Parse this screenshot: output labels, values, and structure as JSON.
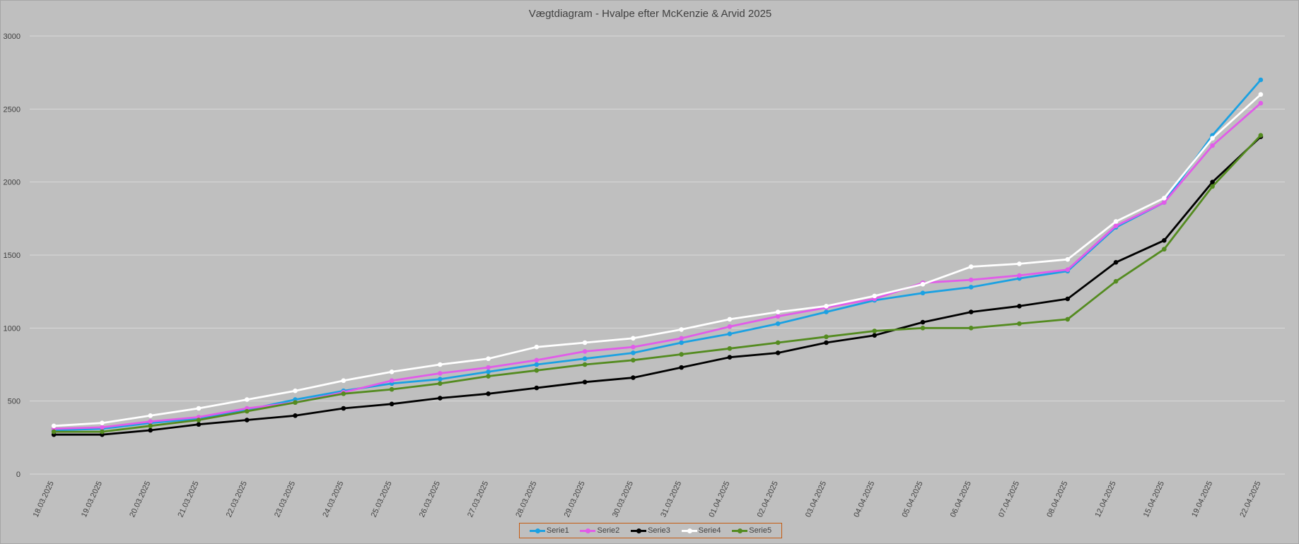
{
  "chart_data": {
    "type": "line",
    "title": "Vægtdiagram - Hvalpe efter McKenzie & Arvid 2025",
    "xlabel": "",
    "ylabel": "",
    "ylim": [
      0,
      3000
    ],
    "yticks": [
      0,
      500,
      1000,
      1500,
      2000,
      2500,
      3000
    ],
    "grid": true,
    "legend_position": "bottom",
    "categories": [
      "18.03.2025",
      "19.03.2025",
      "20.03.2025",
      "21.03.2025",
      "22.03.2025",
      "23.03.2025",
      "24.03.2025",
      "25.03.2025",
      "26.03.2025",
      "27.03.2025",
      "28.03.2025",
      "29.03.2025",
      "30.03.2025",
      "31.03.2025",
      "01.04.2025",
      "02.04.2025",
      "03.04.2025",
      "04.04.2025",
      "05.04.2025",
      "06.04.2025",
      "07.04.2025",
      "08.04.2025",
      "12.04.2025",
      "15.04.2025",
      "19.04.2025",
      "22.04.2025"
    ],
    "series": [
      {
        "name": "Serie1",
        "color": "#1ba1e2",
        "values": [
          300,
          310,
          350,
          380,
          440,
          510,
          570,
          620,
          650,
          700,
          750,
          790,
          830,
          900,
          960,
          1030,
          1110,
          1190,
          1240,
          1280,
          1340,
          1390,
          1690,
          1860,
          2320,
          2700
        ]
      },
      {
        "name": "Serie2",
        "color": "#e15ce9",
        "values": [
          310,
          320,
          360,
          390,
          450,
          490,
          560,
          640,
          690,
          730,
          780,
          840,
          870,
          930,
          1010,
          1080,
          1140,
          1200,
          1310,
          1330,
          1360,
          1400,
          1700,
          1860,
          2250,
          2540
        ]
      },
      {
        "name": "Serie3",
        "color": "#000000",
        "values": [
          270,
          270,
          300,
          340,
          370,
          400,
          450,
          480,
          520,
          550,
          590,
          630,
          660,
          730,
          800,
          830,
          900,
          950,
          1040,
          1110,
          1150,
          1200,
          1450,
          1600,
          2000,
          2310
        ]
      },
      {
        "name": "Serie4",
        "color": "#ffffff",
        "values": [
          330,
          350,
          400,
          450,
          510,
          570,
          640,
          700,
          750,
          790,
          870,
          900,
          930,
          990,
          1060,
          1110,
          1150,
          1220,
          1300,
          1420,
          1440,
          1470,
          1730,
          1890,
          2300,
          2600
        ]
      },
      {
        "name": "Serie5",
        "color": "#548b20",
        "values": [
          290,
          290,
          330,
          370,
          430,
          490,
          550,
          580,
          620,
          670,
          710,
          750,
          780,
          820,
          860,
          900,
          940,
          980,
          1000,
          1000,
          1030,
          1060,
          1320,
          1540,
          1970,
          2320
        ]
      }
    ]
  }
}
